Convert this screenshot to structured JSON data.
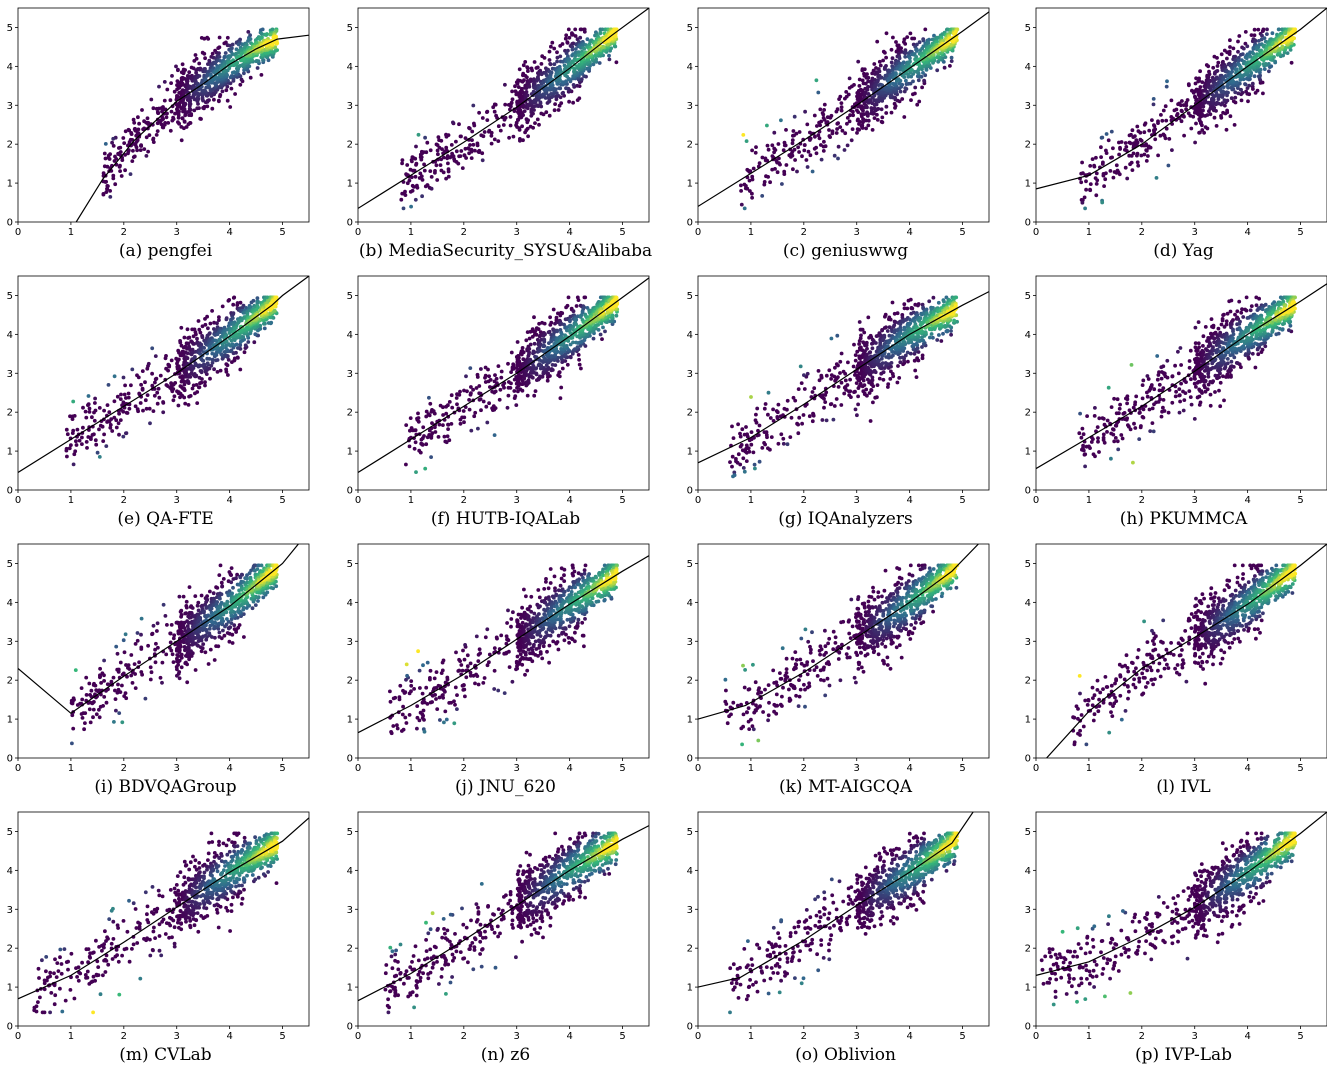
{
  "chart_data": [
    {
      "type": "scatter",
      "caption": "(a) pengfei",
      "x_ticks": [
        "0",
        "1",
        "2",
        "3",
        "4",
        "5"
      ],
      "y_ticks": [
        "0",
        "1",
        "2",
        "3",
        "4",
        "5"
      ],
      "xlim": [
        0,
        5.5
      ],
      "ylim": [
        0,
        5.5
      ],
      "fit_line": [
        [
          1.1,
          0
        ],
        [
          1.6,
          1.1
        ],
        [
          2.2,
          2.1
        ],
        [
          3.0,
          3.1
        ],
        [
          3.5,
          3.55
        ],
        [
          4.0,
          4.05
        ],
        [
          4.5,
          4.45
        ],
        [
          4.9,
          4.7
        ],
        [
          5.5,
          4.8
        ]
      ],
      "spread": 0.38,
      "low_x": 1.6
    },
    {
      "type": "scatter",
      "caption": "(b) MediaSecurity_SYSU&Alibaba",
      "x_ticks": [
        "0",
        "1",
        "2",
        "3",
        "4",
        "5"
      ],
      "y_ticks": [
        "0",
        "1",
        "2",
        "3",
        "4",
        "5"
      ],
      "xlim": [
        0,
        5.5
      ],
      "ylim": [
        0,
        5.5
      ],
      "fit_line": [
        [
          0,
          0.35
        ],
        [
          1,
          1.2
        ],
        [
          2,
          2.05
        ],
        [
          3,
          2.95
        ],
        [
          4,
          3.95
        ],
        [
          4.8,
          4.8
        ],
        [
          5.5,
          5.5
        ]
      ],
      "spread": 0.4,
      "low_x": 0.8
    },
    {
      "type": "scatter",
      "caption": "(c) geniuswwg",
      "x_ticks": [
        "0",
        "1",
        "2",
        "3",
        "4",
        "5"
      ],
      "y_ticks": [
        "0",
        "1",
        "2",
        "3",
        "4",
        "5"
      ],
      "xlim": [
        0,
        5.5
      ],
      "ylim": [
        0,
        5.5
      ],
      "fit_line": [
        [
          0,
          0.4
        ],
        [
          1,
          1.25
        ],
        [
          2,
          2.1
        ],
        [
          3,
          3.0
        ],
        [
          4,
          3.95
        ],
        [
          5,
          4.9
        ],
        [
          5.5,
          5.4
        ]
      ],
      "spread": 0.4,
      "low_x": 0.8
    },
    {
      "type": "scatter",
      "caption": "(d) Yag",
      "x_ticks": [
        "0",
        "1",
        "2",
        "3",
        "4",
        "5"
      ],
      "y_ticks": [
        "0",
        "1",
        "2",
        "3",
        "4",
        "5"
      ],
      "xlim": [
        0,
        5.5
      ],
      "ylim": [
        0,
        5.5
      ],
      "fit_line": [
        [
          0,
          0.85
        ],
        [
          1,
          1.2
        ],
        [
          2,
          2.0
        ],
        [
          3,
          3.0
        ],
        [
          4,
          4.0
        ],
        [
          5,
          4.95
        ],
        [
          5.5,
          5.5
        ]
      ],
      "spread": 0.4,
      "low_x": 0.8
    },
    {
      "type": "scatter",
      "caption": "(e) QA-FTE",
      "x_ticks": [
        "0",
        "1",
        "2",
        "3",
        "4",
        "5"
      ],
      "y_ticks": [
        "0",
        "1",
        "2",
        "3",
        "4",
        "5"
      ],
      "xlim": [
        0,
        5.5
      ],
      "ylim": [
        0,
        5.5
      ],
      "fit_line": [
        [
          0,
          0.45
        ],
        [
          1,
          1.3
        ],
        [
          2,
          2.15
        ],
        [
          3,
          3.0
        ],
        [
          4,
          3.95
        ],
        [
          4.8,
          4.75
        ],
        [
          5,
          5.0
        ],
        [
          5.5,
          5.5
        ]
      ],
      "spread": 0.4,
      "low_x": 0.9
    },
    {
      "type": "scatter",
      "caption": "(f) HUTB-IQALab",
      "x_ticks": [
        "0",
        "1",
        "2",
        "3",
        "4",
        "5"
      ],
      "y_ticks": [
        "0",
        "1",
        "2",
        "3",
        "4",
        "5"
      ],
      "xlim": [
        0,
        5.5
      ],
      "ylim": [
        0,
        5.5
      ],
      "fit_line": [
        [
          0,
          0.45
        ],
        [
          1,
          1.3
        ],
        [
          2,
          2.15
        ],
        [
          3,
          3.0
        ],
        [
          4,
          3.95
        ],
        [
          5,
          4.95
        ],
        [
          5.5,
          5.45
        ]
      ],
      "spread": 0.4,
      "low_x": 0.9
    },
    {
      "type": "scatter",
      "caption": "(g) IQAnalyzers",
      "x_ticks": [
        "0",
        "1",
        "2",
        "3",
        "4",
        "5"
      ],
      "y_ticks": [
        "0",
        "1",
        "2",
        "3",
        "4",
        "5"
      ],
      "xlim": [
        0,
        5.5
      ],
      "ylim": [
        0,
        5.5
      ],
      "fit_line": [
        [
          0,
          0.7
        ],
        [
          1,
          1.35
        ],
        [
          2,
          2.2
        ],
        [
          3,
          3.1
        ],
        [
          4,
          4.0
        ],
        [
          5,
          4.75
        ],
        [
          5.5,
          5.1
        ]
      ],
      "spread": 0.4,
      "low_x": 0.6
    },
    {
      "type": "scatter",
      "caption": "(h) PKUMMCA",
      "x_ticks": [
        "0",
        "1",
        "2",
        "3",
        "4",
        "5"
      ],
      "y_ticks": [
        "0",
        "1",
        "2",
        "3",
        "4",
        "5"
      ],
      "xlim": [
        0,
        5.5
      ],
      "ylim": [
        0,
        5.5
      ],
      "fit_line": [
        [
          0,
          0.55
        ],
        [
          1,
          1.35
        ],
        [
          2,
          2.15
        ],
        [
          3,
          3.05
        ],
        [
          4,
          4.0
        ],
        [
          5,
          4.85
        ],
        [
          5.5,
          5.3
        ]
      ],
      "spread": 0.4,
      "low_x": 0.8
    },
    {
      "type": "scatter",
      "caption": "(i) BDVQAGroup",
      "x_ticks": [
        "0",
        "1",
        "2",
        "3",
        "4",
        "5"
      ],
      "y_ticks": [
        "0",
        "1",
        "2",
        "3",
        "4",
        "5"
      ],
      "xlim": [
        0,
        5.5
      ],
      "ylim": [
        0,
        5.5
      ],
      "fit_line": [
        [
          0,
          2.3
        ],
        [
          1.0,
          1.15
        ],
        [
          2,
          2.1
        ],
        [
          3,
          3.0
        ],
        [
          4,
          3.9
        ],
        [
          5,
          5.0
        ],
        [
          5.3,
          5.5
        ]
      ],
      "spread": 0.42,
      "low_x": 1.0
    },
    {
      "type": "scatter",
      "caption": "(j) JNU_620",
      "x_ticks": [
        "0",
        "1",
        "2",
        "3",
        "4",
        "5"
      ],
      "y_ticks": [
        "0",
        "1",
        "2",
        "3",
        "4",
        "5"
      ],
      "xlim": [
        0,
        5.5
      ],
      "ylim": [
        0,
        5.5
      ],
      "fit_line": [
        [
          0,
          0.65
        ],
        [
          1,
          1.35
        ],
        [
          2,
          2.15
        ],
        [
          3,
          3.05
        ],
        [
          4,
          3.95
        ],
        [
          5,
          4.8
        ],
        [
          5.5,
          5.2
        ]
      ],
      "spread": 0.42,
      "low_x": 0.6
    },
    {
      "type": "scatter",
      "caption": "(k) MT-AIGCQA",
      "x_ticks": [
        "0",
        "1",
        "2",
        "3",
        "4",
        "5"
      ],
      "y_ticks": [
        "0",
        "1",
        "2",
        "3",
        "4",
        "5"
      ],
      "xlim": [
        0,
        5.5
      ],
      "ylim": [
        0,
        5.5
      ],
      "fit_line": [
        [
          0,
          1.0
        ],
        [
          0.9,
          1.35
        ],
        [
          2,
          2.2
        ],
        [
          3,
          3.1
        ],
        [
          4,
          4.0
        ],
        [
          4.8,
          4.8
        ],
        [
          5.3,
          5.5
        ]
      ],
      "spread": 0.42,
      "low_x": 0.5
    },
    {
      "type": "scatter",
      "caption": "(l) IVL",
      "x_ticks": [
        "0",
        "1",
        "2",
        "3",
        "4",
        "5"
      ],
      "y_ticks": [
        "0",
        "1",
        "2",
        "3",
        "4",
        "5"
      ],
      "xlim": [
        0,
        5.5
      ],
      "ylim": [
        0,
        5.5
      ],
      "fit_line": [
        [
          0.2,
          0
        ],
        [
          1,
          1.2
        ],
        [
          2,
          2.3
        ],
        [
          3,
          3.1
        ],
        [
          4,
          3.95
        ],
        [
          5,
          4.95
        ],
        [
          5.5,
          5.5
        ]
      ],
      "spread": 0.42,
      "low_x": 0.7
    },
    {
      "type": "scatter",
      "caption": "(m) CVLab",
      "x_ticks": [
        "0",
        "1",
        "2",
        "3",
        "4",
        "5"
      ],
      "y_ticks": [
        "0",
        "1",
        "2",
        "3",
        "4",
        "5"
      ],
      "xlim": [
        0,
        5.5
      ],
      "ylim": [
        0,
        5.5
      ],
      "fit_line": [
        [
          0,
          0.7
        ],
        [
          1,
          1.3
        ],
        [
          2,
          2.15
        ],
        [
          3,
          3.05
        ],
        [
          4,
          3.95
        ],
        [
          5,
          4.75
        ],
        [
          5.5,
          5.35
        ]
      ],
      "spread": 0.42,
      "low_x": 0.3
    },
    {
      "type": "scatter",
      "caption": "(n) z6",
      "x_ticks": [
        "0",
        "1",
        "2",
        "3",
        "4",
        "5"
      ],
      "y_ticks": [
        "0",
        "1",
        "2",
        "3",
        "4",
        "5"
      ],
      "xlim": [
        0,
        5.5
      ],
      "ylim": [
        0,
        5.5
      ],
      "fit_line": [
        [
          0,
          0.65
        ],
        [
          1,
          1.35
        ],
        [
          2,
          2.2
        ],
        [
          3,
          3.1
        ],
        [
          4,
          4.0
        ],
        [
          5,
          4.8
        ],
        [
          5.5,
          5.15
        ]
      ],
      "spread": 0.42,
      "low_x": 0.5
    },
    {
      "type": "scatter",
      "caption": "(o) Oblivion",
      "x_ticks": [
        "0",
        "1",
        "2",
        "3",
        "4",
        "5"
      ],
      "y_ticks": [
        "0",
        "1",
        "2",
        "3",
        "4",
        "5"
      ],
      "xlim": [
        0,
        5.5
      ],
      "ylim": [
        0,
        5.5
      ],
      "fit_line": [
        [
          0,
          1.0
        ],
        [
          0.8,
          1.25
        ],
        [
          2,
          2.2
        ],
        [
          3,
          3.1
        ],
        [
          4,
          3.95
        ],
        [
          4.8,
          4.7
        ],
        [
          5.2,
          5.5
        ]
      ],
      "spread": 0.42,
      "low_x": 0.6
    },
    {
      "type": "scatter",
      "caption": "(p) IVP-Lab",
      "x_ticks": [
        "0",
        "1",
        "2",
        "3",
        "4",
        "5"
      ],
      "y_ticks": [
        "0",
        "1",
        "2",
        "3",
        "4",
        "5"
      ],
      "xlim": [
        0,
        5.5
      ],
      "ylim": [
        0,
        5.5
      ],
      "fit_line": [
        [
          0,
          1.3
        ],
        [
          1,
          1.65
        ],
        [
          2,
          2.3
        ],
        [
          3,
          3.05
        ],
        [
          4,
          3.95
        ],
        [
          5,
          4.95
        ],
        [
          5.5,
          5.5
        ]
      ],
      "spread": 0.42,
      "low_x": 0.1
    }
  ],
  "colors": {
    "low": "#440154",
    "mid": "#31688e",
    "teal": "#35b779",
    "high": "#fde725",
    "line": "#000000"
  }
}
